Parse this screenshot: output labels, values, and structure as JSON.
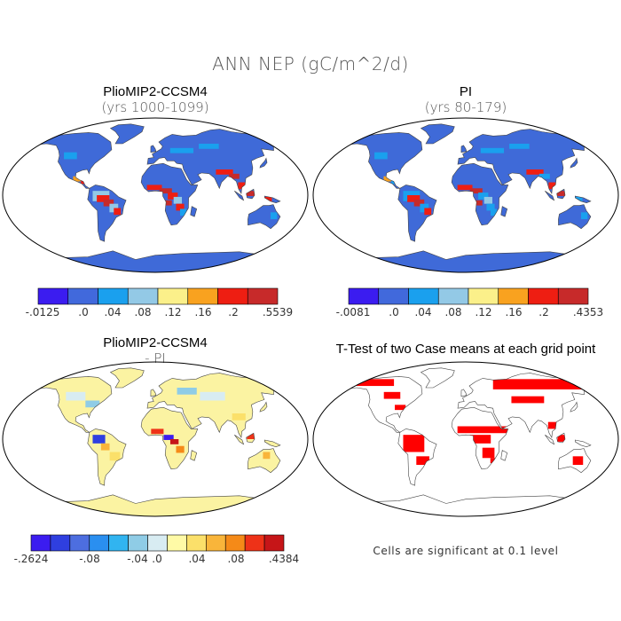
{
  "title": "ANN NEP (gC/m^2/d)",
  "colors": {
    "cbar_case": [
      "#3b1cf0",
      "#4169dc",
      "#1aa0ee",
      "#93c9e6",
      "#fbf08a",
      "#f9a21f",
      "#ee1e12",
      "#c72a2a"
    ],
    "cbar_diff": [
      "#3b1cf0",
      "#2f3fe0",
      "#4d6ee0",
      "#2a8ff0",
      "#31b4f0",
      "#8fcce6",
      "#d8ecf2",
      "#fffaa6",
      "#fbe06a",
      "#f9b53a",
      "#f58a18",
      "#ee3218",
      "#c61518"
    ],
    "land_fill_case": "#3f6ad8",
    "land_fill_diff": "#fbf3a2",
    "sig_fill": "#ff0000",
    "coast": "#444444"
  },
  "panels": [
    {
      "title": "PlioMIP2-CCSM4",
      "subtitle": "(yrs 1000-1099)",
      "colorbar_ticks": [
        "-.0125",
        ".0",
        ".04",
        ".08",
        ".12",
        ".16",
        ".2",
        ".5539"
      ]
    },
    {
      "title": "PI",
      "subtitle": "(yrs 80-179)",
      "colorbar_ticks": [
        "-.0081",
        ".0",
        ".04",
        ".08",
        ".12",
        ".16",
        ".2",
        ".4353"
      ]
    },
    {
      "title": "PlioMIP2-CCSM4",
      "subtitle": "- PI",
      "colorbar_ticks": [
        "-.2624",
        "-.08",
        "-.04",
        ".0",
        ".04",
        ".08",
        ".4384"
      ]
    },
    {
      "title": "T-Test of two Case means at each grid point",
      "note": "Cells are significant at 0.1 level"
    }
  ]
}
